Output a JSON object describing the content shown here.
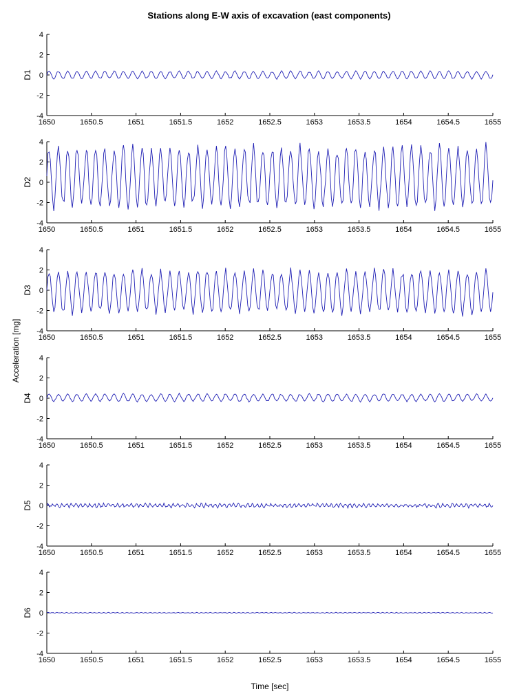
{
  "figure": {
    "title": "Stations along E-W axis of excavation (east components)",
    "ylabel": "Acceleration [mg]",
    "xlabel": "Time [sec]"
  },
  "chart_data": [
    {
      "type": "line",
      "series_label": "D1",
      "x_range": [
        1650,
        1655
      ],
      "ylim": [
        -4,
        4
      ],
      "x_ticks": [
        "1650",
        "1650.5",
        "1651",
        "1651.5",
        "1652",
        "1652.5",
        "1653",
        "1653.5",
        "1654",
        "1654.5",
        "1655"
      ],
      "y_ticks": [
        "4",
        "2",
        "0",
        "-2",
        "-4"
      ],
      "signal": {
        "cycles": 48,
        "amplitude": 0.35,
        "offset": 0.0,
        "noise": 0.05,
        "points_per_cycle": 8
      },
      "line_color": "#1f1fb4"
    },
    {
      "type": "line",
      "series_label": "D2",
      "x_range": [
        1650,
        1655
      ],
      "ylim": [
        -4,
        4
      ],
      "x_ticks": [
        "1650",
        "1650.5",
        "1651",
        "1651.5",
        "1652",
        "1652.5",
        "1653",
        "1653.5",
        "1654",
        "1654.5",
        "1655"
      ],
      "y_ticks": [
        "4",
        "2",
        "0",
        "-2",
        "-4"
      ],
      "signal": {
        "cycles": 48,
        "amplitude": 2.8,
        "offset": 0.5,
        "noise": 0.35,
        "points_per_cycle": 8
      },
      "line_color": "#1f1fb4"
    },
    {
      "type": "line",
      "series_label": "D3",
      "x_range": [
        1650,
        1655
      ],
      "ylim": [
        -4,
        4
      ],
      "x_ticks": [
        "1650",
        "1650.5",
        "1651",
        "1651.5",
        "1652",
        "1652.5",
        "1653",
        "1653.5",
        "1654",
        "1654.5",
        "1655"
      ],
      "y_ticks": [
        "4",
        "2",
        "0",
        "-2",
        "-4"
      ],
      "signal": {
        "cycles": 48,
        "amplitude": 2.0,
        "offset": -0.15,
        "noise": 0.2,
        "points_per_cycle": 8
      },
      "line_color": "#1f1fb4"
    },
    {
      "type": "line",
      "series_label": "D4",
      "x_range": [
        1650,
        1655
      ],
      "ylim": [
        -4,
        4
      ],
      "x_ticks": [
        "1650",
        "1650.5",
        "1651",
        "1651.5",
        "1652",
        "1652.5",
        "1653",
        "1653.5",
        "1654",
        "1654.5",
        "1655"
      ],
      "y_ticks": [
        "4",
        "2",
        "0",
        "-2",
        "-4"
      ],
      "signal": {
        "cycles": 48,
        "amplitude": 0.35,
        "offset": 0.05,
        "noise": 0.06,
        "points_per_cycle": 8
      },
      "line_color": "#1f1fb4"
    },
    {
      "type": "line",
      "series_label": "D5",
      "x_range": [
        1650,
        1655
      ],
      "ylim": [
        -4,
        4
      ],
      "x_ticks": [
        "1650",
        "1650.5",
        "1651",
        "1651.5",
        "1652",
        "1652.5",
        "1653",
        "1653.5",
        "1654",
        "1654.5",
        "1655"
      ],
      "y_ticks": [
        "4",
        "2",
        "0",
        "-2",
        "-4"
      ],
      "signal": {
        "cycles": 96,
        "amplitude": 0.15,
        "offset": 0.0,
        "noise": 0.1,
        "points_per_cycle": 5
      },
      "line_color": "#1f1fb4"
    },
    {
      "type": "line",
      "series_label": "D6",
      "x_range": [
        1650,
        1655
      ],
      "ylim": [
        -4,
        4
      ],
      "x_ticks": [
        "1650",
        "1650.5",
        "1651",
        "1651.5",
        "1652",
        "1652.5",
        "1653",
        "1653.5",
        "1654",
        "1654.5",
        "1655"
      ],
      "y_ticks": [
        "4",
        "2",
        "0",
        "-2",
        "-4"
      ],
      "signal": {
        "cycles": 96,
        "amplitude": 0.03,
        "offset": 0.0,
        "noise": 0.02,
        "points_per_cycle": 5
      },
      "line_color": "#1f1fb4"
    }
  ]
}
